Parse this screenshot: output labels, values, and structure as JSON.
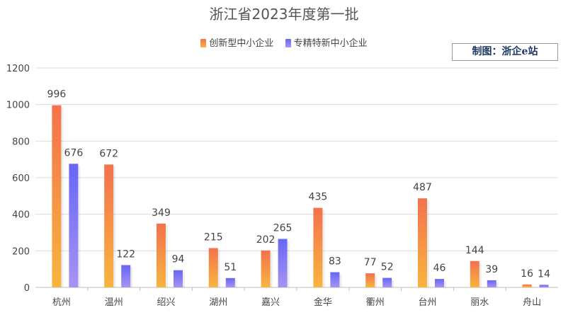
{
  "chart_data": {
    "type": "bar",
    "title": "浙江省2023年度第一批",
    "categories": [
      "杭州",
      "温州",
      "绍兴",
      "湖州",
      "嘉兴",
      "金华",
      "衢州",
      "台州",
      "丽水",
      "舟山"
    ],
    "series": [
      {
        "name": "创新型中小企业",
        "values": [
          996,
          672,
          349,
          215,
          202,
          435,
          77,
          487,
          144,
          16
        ],
        "color_top": "#f4714d",
        "color_bottom": "#f7b53f"
      },
      {
        "name": "专精特新中小企业",
        "values": [
          676,
          122,
          94,
          51,
          265,
          83,
          52,
          46,
          39,
          14
        ],
        "color_top": "#6767f5",
        "color_bottom": "#a793f2"
      }
    ],
    "ylim": [
      0,
      1200
    ],
    "yticks": [
      0,
      200,
      400,
      600,
      800,
      1000,
      1200
    ],
    "grid": true,
    "legend_position": "top-center",
    "data_labels": true
  },
  "watermark": {
    "text": "制图：浙企e站"
  }
}
